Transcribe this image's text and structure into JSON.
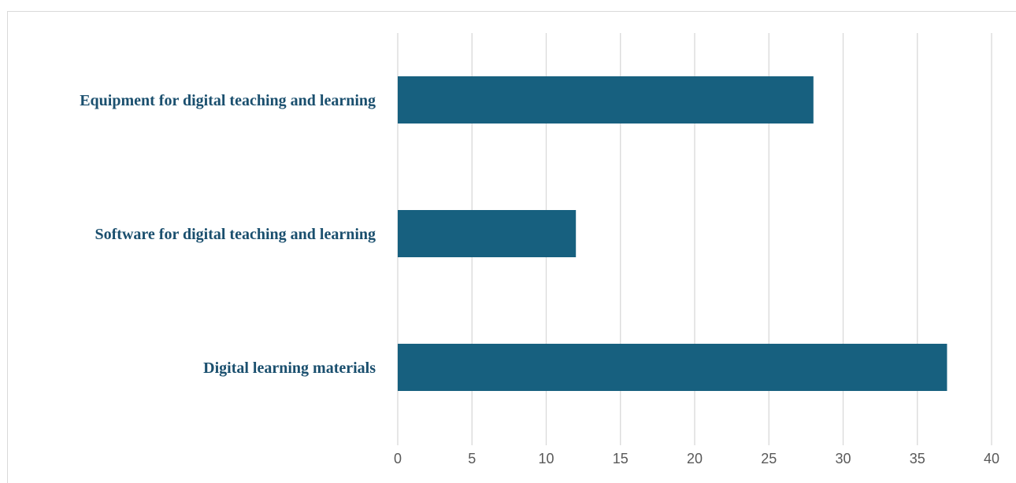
{
  "chart_data": {
    "type": "bar",
    "orientation": "horizontal",
    "categories": [
      "Equipment for digital teaching and learning",
      "Software for digital teaching and learning",
      "Digital learning materials"
    ],
    "values": [
      28,
      12,
      37
    ],
    "xlim": [
      0,
      40
    ],
    "xticks": [
      "0",
      "5",
      "10",
      "15",
      "20",
      "25",
      "30",
      "35",
      "40"
    ],
    "grid": true,
    "bar_color": "#17607f",
    "label_color": "#1a4f6e"
  }
}
